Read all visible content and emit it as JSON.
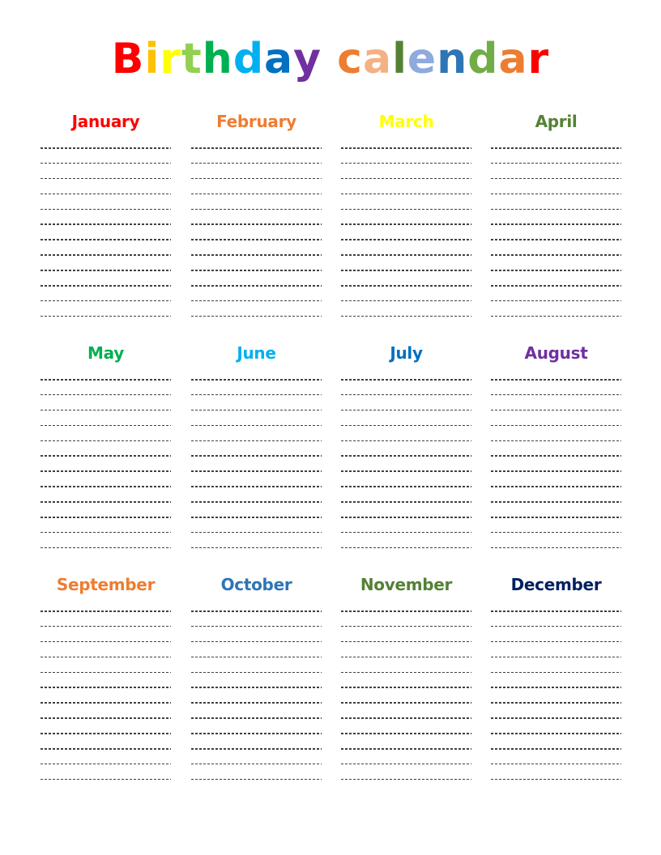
{
  "title": {
    "text": "Birthday calendar",
    "letter_colors": [
      "#FF0000",
      "#FFC000",
      "#FFFF00",
      "#92D050",
      "#00B050",
      "#00B0F0",
      "#0070C0",
      "#7030A0",
      "#FFFFFF",
      "#ED7D31",
      "#F4B183",
      "#548235",
      "#8FAADC",
      "#2E75B6",
      "#70AD47",
      "#ED7D31",
      "#FF0000"
    ]
  },
  "months": [
    {
      "name": "January",
      "color": "#FF0000"
    },
    {
      "name": "February",
      "color": "#ED7D31"
    },
    {
      "name": "March",
      "color": "#FFFF00"
    },
    {
      "name": "April",
      "color": "#548235"
    },
    {
      "name": "May",
      "color": "#00B050"
    },
    {
      "name": "June",
      "color": "#00B0F0"
    },
    {
      "name": "July",
      "color": "#0070C0"
    },
    {
      "name": "August",
      "color": "#7030A0"
    },
    {
      "name": "September",
      "color": "#ED7D31"
    },
    {
      "name": "October",
      "color": "#2E75B6"
    },
    {
      "name": "November",
      "color": "#548235"
    },
    {
      "name": "December",
      "color": "#002060"
    }
  ],
  "lines_per_month": 12
}
